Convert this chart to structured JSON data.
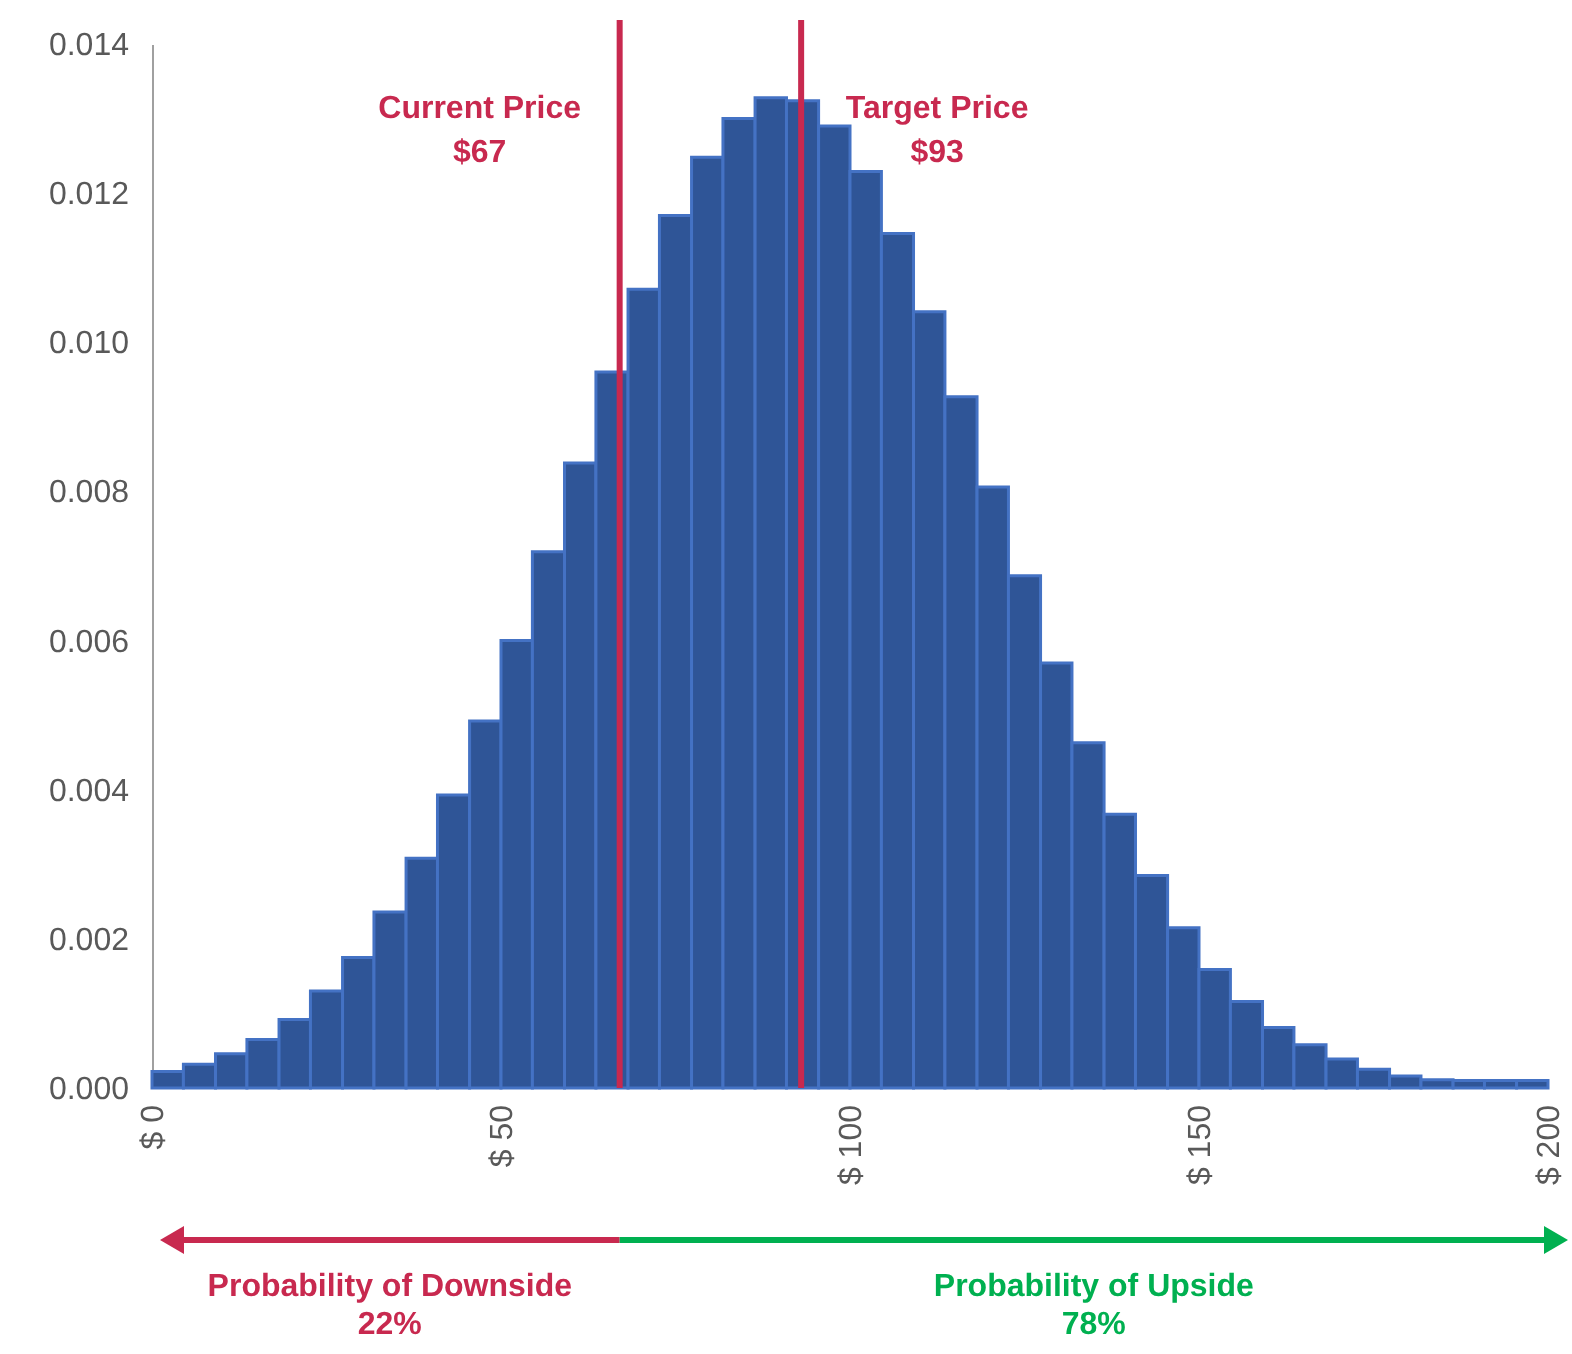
{
  "chart_data": {
    "type": "histogram",
    "color": "#2f5597",
    "bins": [
      0,
      4.5,
      9.1,
      13.6,
      18.2,
      22.7,
      27.3,
      31.8,
      36.4,
      40.9,
      45.5,
      50,
      54.5,
      59.1,
      63.6,
      68.2,
      72.7,
      77.3,
      81.8,
      86.4,
      90.9,
      95.5,
      100,
      104.5,
      109.1,
      113.6,
      118.2,
      122.7,
      127.3,
      131.8,
      136.4,
      140.9,
      145.5,
      150,
      154.5,
      159.1,
      163.6,
      168.2,
      172.7,
      177.3,
      181.8,
      186.4,
      190.9,
      195.5,
      200
    ],
    "values": [
      0.00022,
      0.00032,
      0.00046,
      0.00065,
      0.00092,
      0.0013,
      0.00175,
      0.00236,
      0.00308,
      0.00393,
      0.00492,
      0.006,
      0.00719,
      0.00838,
      0.0096,
      0.01071,
      0.0117,
      0.01248,
      0.013,
      0.01328,
      0.01324,
      0.0129,
      0.01229,
      0.01146,
      0.01041,
      0.00927,
      0.00806,
      0.00687,
      0.0057,
      0.00463,
      0.00367,
      0.00285,
      0.00215,
      0.00159,
      0.00116,
      0.00081,
      0.00058,
      0.00039,
      0.00025,
      0.00016,
      0.00011,
      0.0001,
      0.0001,
      0.0001
    ],
    "xlim": [
      0,
      200
    ],
    "xticks": [
      {
        "value": 0,
        "label": "$ 0"
      },
      {
        "value": 50,
        "label": "$ 50"
      },
      {
        "value": 100,
        "label": "$ 100"
      },
      {
        "value": 150,
        "label": "$ 150"
      },
      {
        "value": 200,
        "label": "$ 200"
      }
    ],
    "ylim": [
      0,
      0.014
    ],
    "yticks": [
      {
        "value": 0,
        "label": "0.000"
      },
      {
        "value": 0.002,
        "label": "0.002"
      },
      {
        "value": 0.004,
        "label": "0.004"
      },
      {
        "value": 0.006,
        "label": "0.006"
      },
      {
        "value": 0.008,
        "label": "0.008"
      },
      {
        "value": 0.01,
        "label": "0.010"
      },
      {
        "value": 0.012,
        "label": "0.012"
      },
      {
        "value": 0.014,
        "label": "0.014"
      }
    ],
    "ref_lines": [
      {
        "axis": "x",
        "value": 67,
        "label": "Current Price\n$67",
        "color": "#c8294f"
      },
      {
        "axis": "x",
        "value": 93,
        "label": "Target Price\n$93",
        "color": "#c8294f"
      }
    ],
    "annotations": [
      "Probability of Downside\n22%",
      "Probability of Upside\n78%"
    ],
    "grid": false
  }
}
